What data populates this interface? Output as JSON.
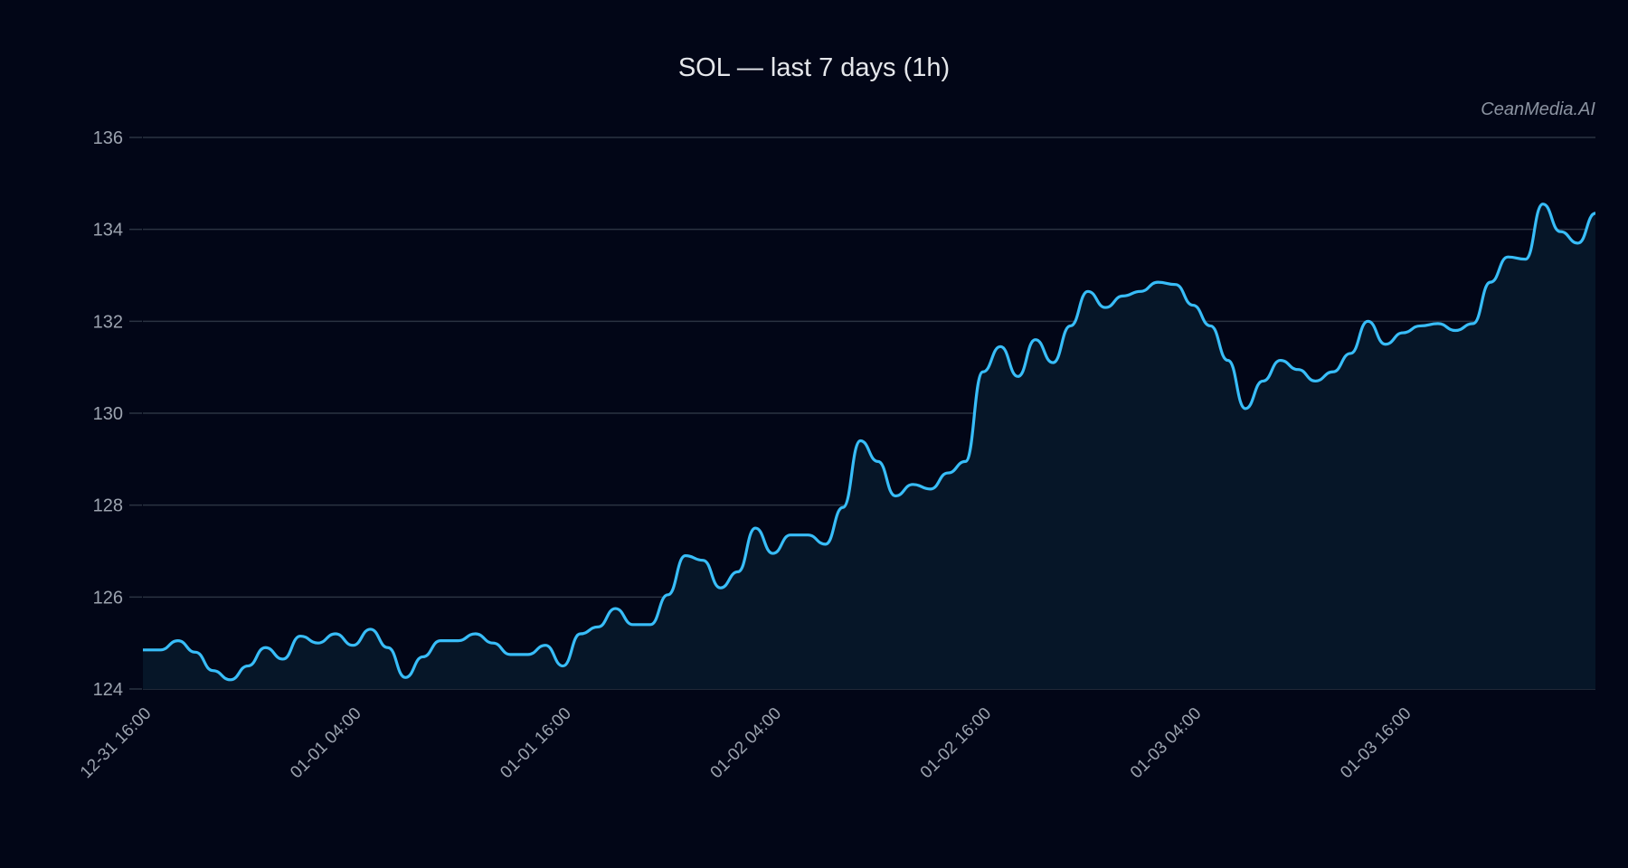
{
  "watermark": "CeanMedia.AI",
  "colors": {
    "background": "#020617",
    "line": "#38bdf8",
    "area": "#061628",
    "grid": "#2b3342",
    "text": "#9ca3af"
  },
  "chart_data": {
    "type": "area",
    "title": "SOL — last 7 days (1h)",
    "xlabel": "",
    "ylabel": "",
    "ylim": [
      124,
      136
    ],
    "yticks": [
      "124",
      "126",
      "128",
      "130",
      "132",
      "134",
      "136"
    ],
    "xtick_labels": [
      "12-31 16:00",
      "01-01 04:00",
      "01-01 16:00",
      "01-02 04:00",
      "01-02 16:00",
      "01-03 04:00",
      "01-03 16:00"
    ],
    "grid": true,
    "x": [
      "12-31 16:00",
      "12-31 17:00",
      "12-31 18:00",
      "12-31 19:00",
      "12-31 20:00",
      "12-31 21:00",
      "12-31 22:00",
      "12-31 23:00",
      "01-01 00:00",
      "01-01 01:00",
      "01-01 02:00",
      "01-01 03:00",
      "01-01 04:00",
      "01-01 05:00",
      "01-01 06:00",
      "01-01 07:00",
      "01-01 08:00",
      "01-01 09:00",
      "01-01 10:00",
      "01-01 11:00",
      "01-01 12:00",
      "01-01 13:00",
      "01-01 14:00",
      "01-01 15:00",
      "01-01 16:00",
      "01-01 17:00",
      "01-01 18:00",
      "01-01 19:00",
      "01-01 20:00",
      "01-01 21:00",
      "01-01 22:00",
      "01-01 23:00",
      "01-02 00:00",
      "01-02 01:00",
      "01-02 02:00",
      "01-02 03:00",
      "01-02 04:00",
      "01-02 05:00",
      "01-02 06:00",
      "01-02 07:00",
      "01-02 08:00",
      "01-02 09:00",
      "01-02 10:00",
      "01-02 11:00",
      "01-02 12:00",
      "01-02 13:00",
      "01-02 14:00",
      "01-02 15:00",
      "01-02 16:00",
      "01-02 17:00",
      "01-02 18:00",
      "01-02 19:00",
      "01-02 20:00",
      "01-02 21:00",
      "01-02 22:00",
      "01-02 23:00",
      "01-03 00:00",
      "01-03 01:00",
      "01-03 02:00",
      "01-03 03:00",
      "01-03 04:00",
      "01-03 05:00",
      "01-03 06:00",
      "01-03 07:00",
      "01-03 08:00",
      "01-03 09:00",
      "01-03 10:00",
      "01-03 11:00",
      "01-03 12:00",
      "01-03 13:00",
      "01-03 14:00",
      "01-03 15:00",
      "01-03 16:00",
      "01-03 17:00",
      "01-03 18:00",
      "01-03 19:00",
      "01-03 20:00",
      "01-03 21:00",
      "01-03 22:00",
      "01-03 23:00",
      "01-04 00:00",
      "01-04 01:00",
      "01-04 02:00",
      "01-04 03:00"
    ],
    "values": [
      124.85,
      124.85,
      125.05,
      124.8,
      124.4,
      124.2,
      124.5,
      124.9,
      124.65,
      125.15,
      125.0,
      125.2,
      124.95,
      125.3,
      124.9,
      124.25,
      124.7,
      125.05,
      125.05,
      125.2,
      125.0,
      124.75,
      124.75,
      124.95,
      124.5,
      125.2,
      125.35,
      125.75,
      125.4,
      125.4,
      126.05,
      126.9,
      126.8,
      126.2,
      126.55,
      127.5,
      126.95,
      127.35,
      127.35,
      127.15,
      127.95,
      129.4,
      128.95,
      128.2,
      128.45,
      128.35,
      128.7,
      128.95,
      130.9,
      131.45,
      130.8,
      131.6,
      131.1,
      131.9,
      132.65,
      132.3,
      132.55,
      132.65,
      132.85,
      132.8,
      132.35,
      131.9,
      131.15,
      130.1,
      130.7,
      131.15,
      130.95,
      130.7,
      130.9,
      131.3,
      132.0,
      131.5,
      131.75,
      131.9,
      131.95,
      131.8,
      131.95,
      132.85,
      133.4,
      133.35,
      134.55,
      133.95,
      133.7,
      134.35
    ]
  }
}
